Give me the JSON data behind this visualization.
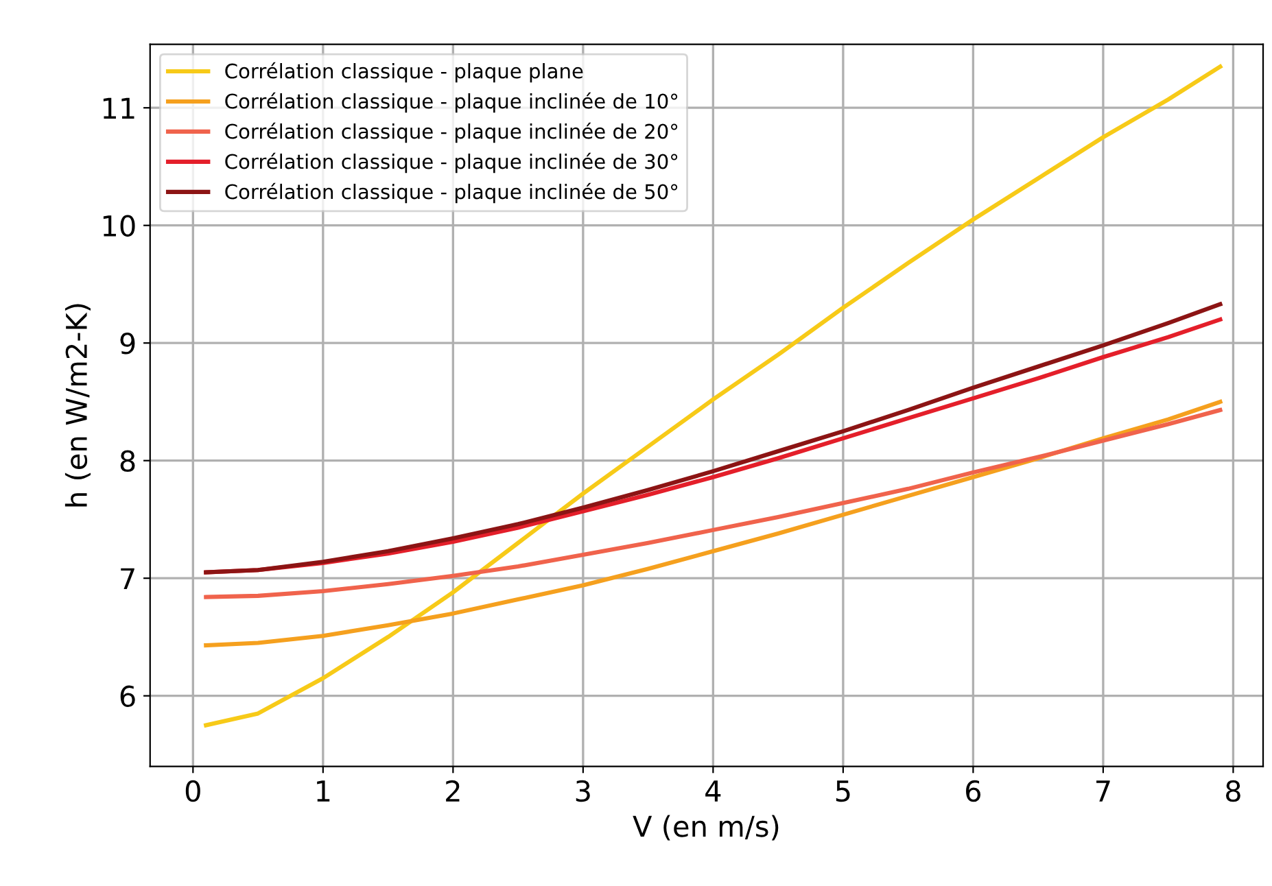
{
  "chart_data": {
    "type": "line",
    "xlabel": "V (en m/s)",
    "ylabel": "h (en W/m2-K)",
    "x": [
      0.1,
      0.5,
      1,
      1.5,
      2,
      2.5,
      3,
      3.5,
      4,
      4.5,
      5,
      5.5,
      6,
      6.5,
      7,
      7.5,
      7.9
    ],
    "series": [
      {
        "name": "Corrélation classique - plaque plane",
        "color": "#f7ca18",
        "values": [
          5.75,
          5.85,
          6.15,
          6.5,
          6.88,
          7.3,
          7.72,
          8.12,
          8.52,
          8.9,
          9.3,
          9.68,
          10.05,
          10.4,
          10.75,
          11.07,
          11.35
        ]
      },
      {
        "name": "Corrélation classique - plaque inclinée de 10°",
        "color": "#f5a01e",
        "values": [
          6.43,
          6.45,
          6.51,
          6.6,
          6.7,
          6.82,
          6.94,
          7.08,
          7.23,
          7.38,
          7.54,
          7.7,
          7.86,
          8.02,
          8.19,
          8.35,
          8.5
        ]
      },
      {
        "name": "Corrélation classique - plaque inclinée de 20°",
        "color": "#f0634c",
        "values": [
          6.84,
          6.85,
          6.89,
          6.95,
          7.02,
          7.1,
          7.2,
          7.3,
          7.41,
          7.52,
          7.64,
          7.76,
          7.9,
          8.03,
          8.17,
          8.31,
          8.43
        ]
      },
      {
        "name": "Corrélation classique - plaque inclinée de 30°",
        "color": "#e41f2a",
        "values": [
          7.05,
          7.07,
          7.13,
          7.21,
          7.31,
          7.43,
          7.57,
          7.71,
          7.86,
          8.02,
          8.19,
          8.36,
          8.53,
          8.7,
          8.88,
          9.05,
          9.2
        ]
      },
      {
        "name": "Corrélation classique - plaque inclinée de 50°",
        "color": "#8c1414",
        "values": [
          7.05,
          7.07,
          7.14,
          7.23,
          7.34,
          7.46,
          7.6,
          7.75,
          7.91,
          8.08,
          8.25,
          8.43,
          8.62,
          8.8,
          8.98,
          9.17,
          9.33
        ]
      }
    ],
    "xlim": [
      -0.33,
      8.23
    ],
    "ylim": [
      5.4,
      11.54
    ],
    "xticks": [
      0,
      1,
      2,
      3,
      4,
      5,
      6,
      7,
      8
    ],
    "yticks": [
      6,
      7,
      8,
      9,
      10,
      11
    ],
    "grid": true,
    "legend": "top left",
    "marker": "none",
    "line_style": "solid"
  }
}
